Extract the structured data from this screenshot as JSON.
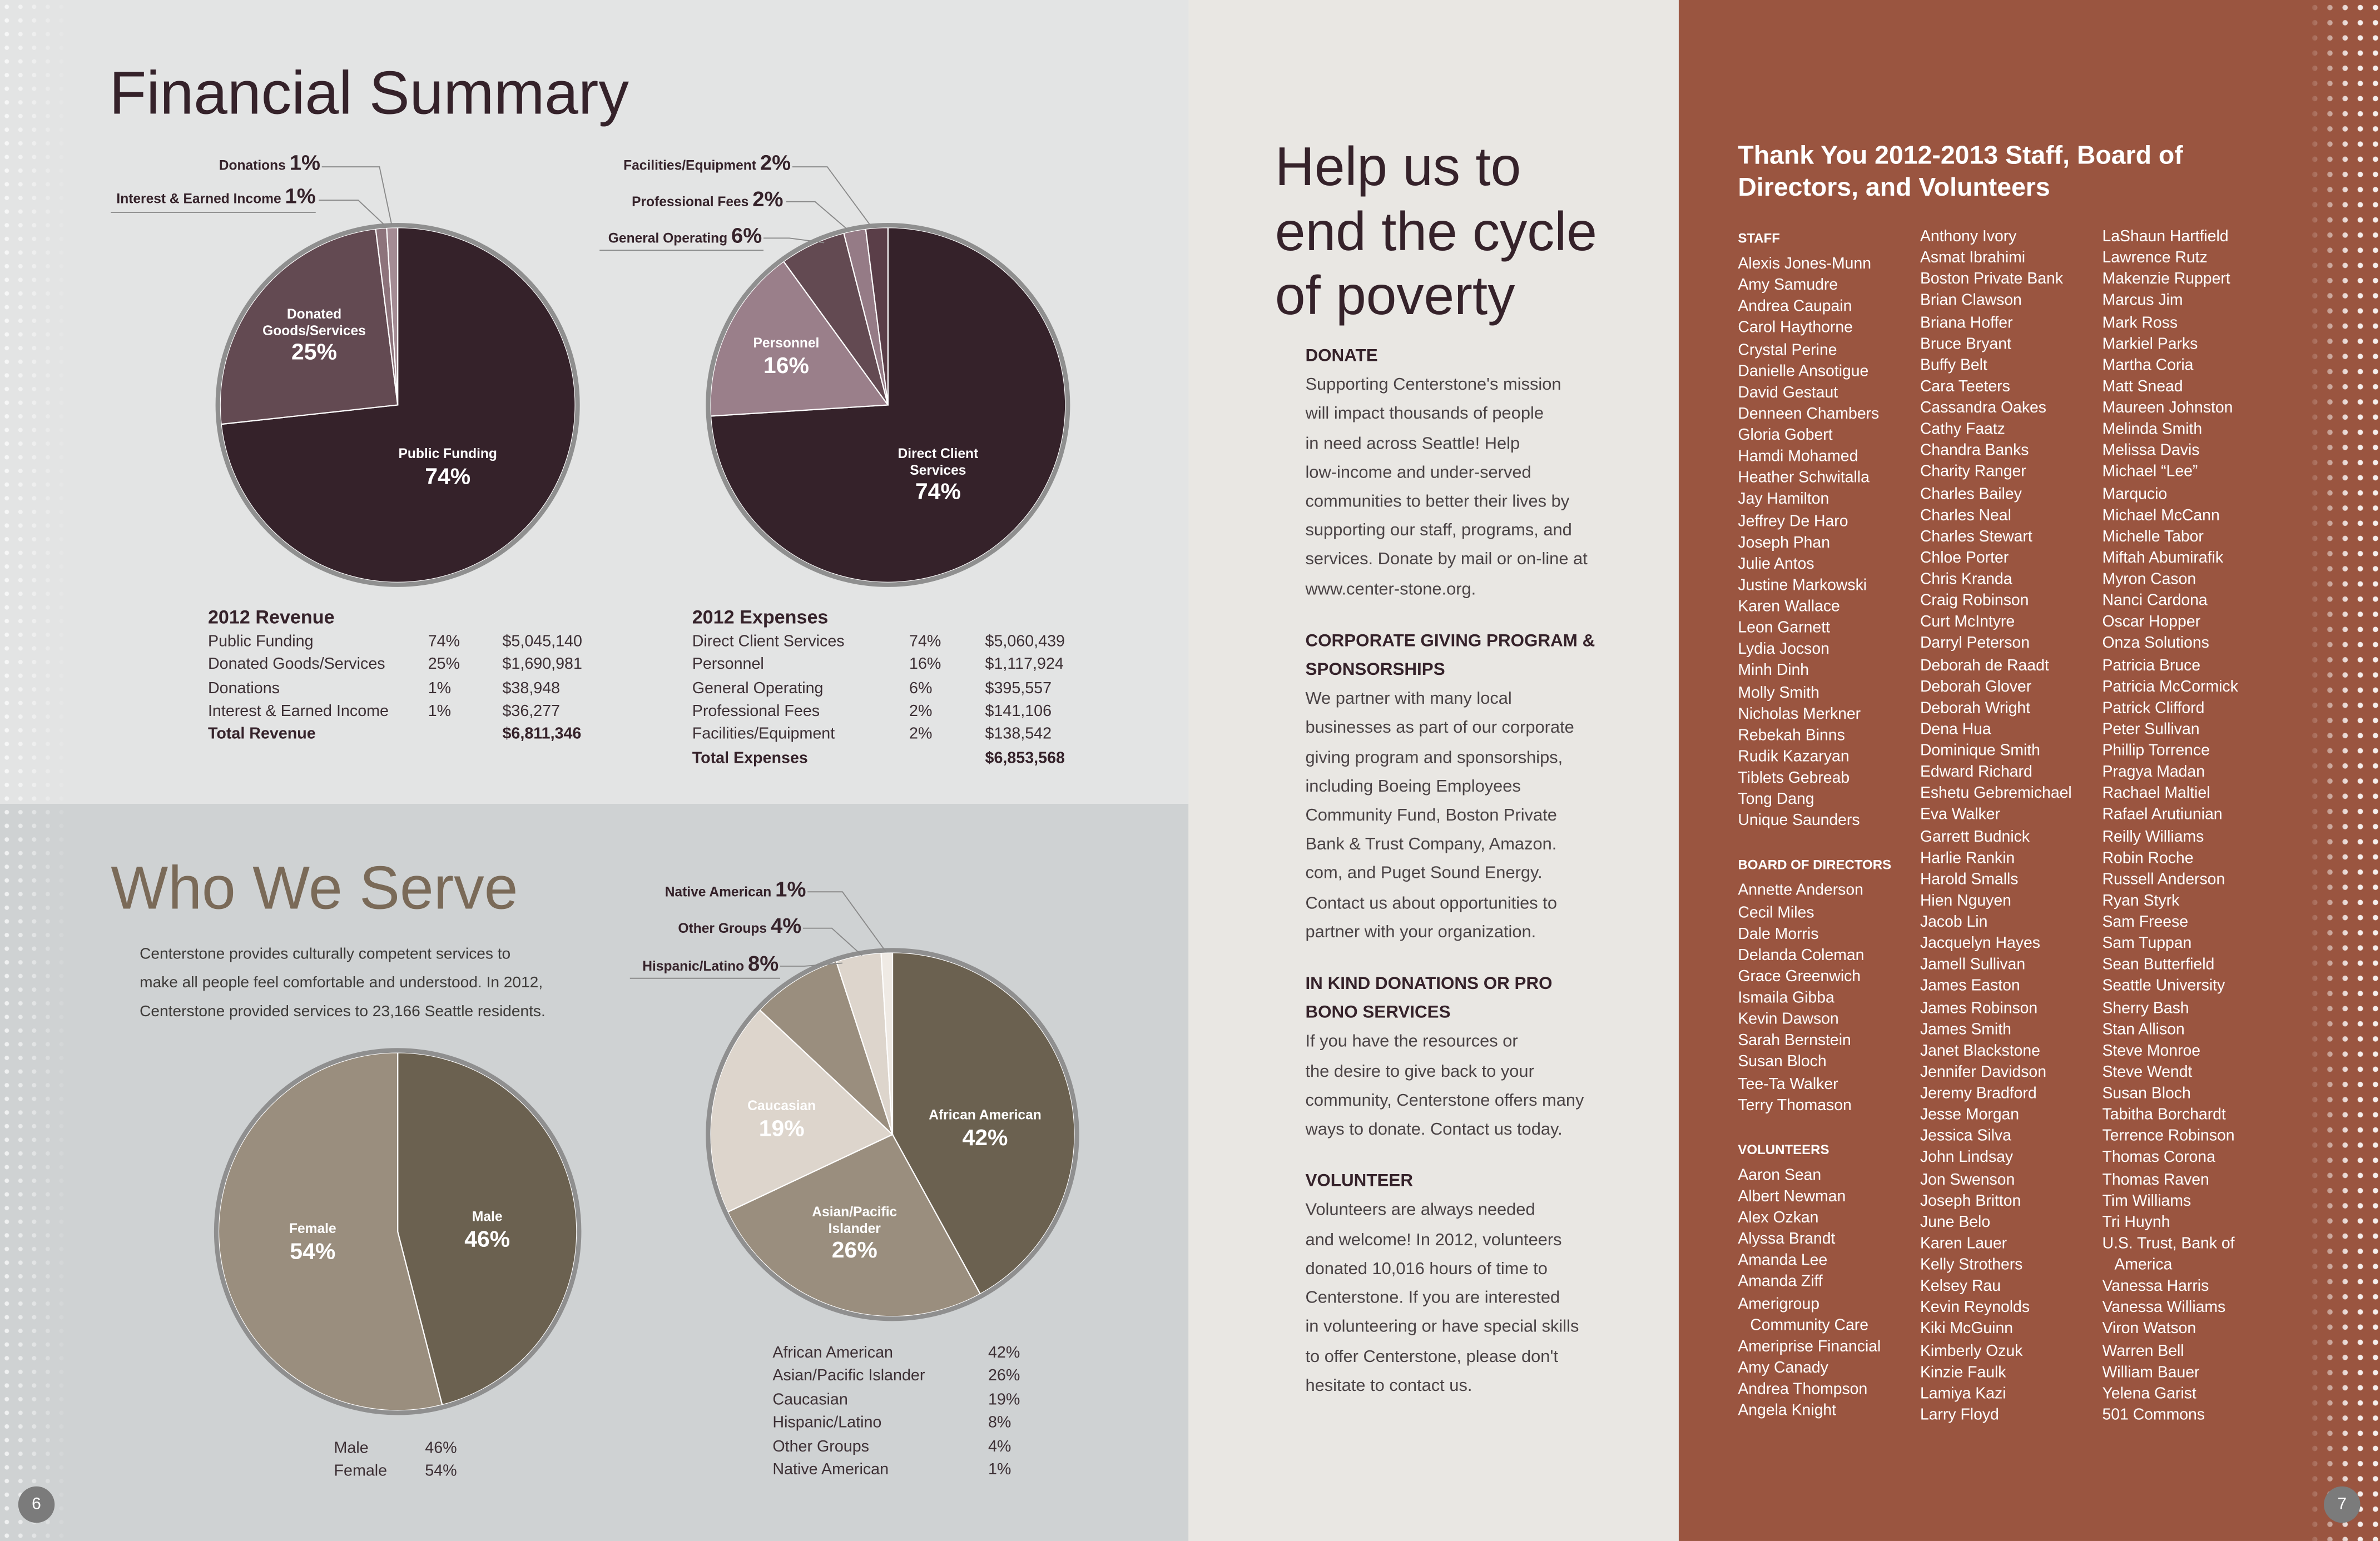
{
  "financial": {
    "title": "Financial Summary",
    "revenue": {
      "heading": "2012 Revenue",
      "rows": [
        [
          "Public Funding",
          "74%",
          "$5,045,140"
        ],
        [
          "Donated Goods/Services",
          "25%",
          "$1,690,981"
        ],
        [
          "Donations",
          "1%",
          "$38,948"
        ],
        [
          "Interest & Earned Income",
          "1%",
          "$36,277"
        ]
      ],
      "total_label": "Total Revenue",
      "total": "$6,811,346"
    },
    "expenses": {
      "heading": "2012 Expenses",
      "rows": [
        [
          "Direct Client Services",
          "74%",
          "$5,060,439"
        ],
        [
          "Personnel",
          "16%",
          "$1,117,924"
        ],
        [
          "General Operating",
          "6%",
          "$395,557"
        ],
        [
          "Professional Fees",
          "2%",
          "$141,106"
        ],
        [
          "Facilities/Equipment",
          "2%",
          "$138,542"
        ]
      ],
      "total_label": "Total Expenses",
      "total": "$6,853,568"
    }
  },
  "serve": {
    "title": "Who We Serve",
    "intro": [
      "Centerstone provides culturally competent services to",
      "make all people feel comfortable and understood. In 2012,",
      "Centerstone provided services to 23,166 Seattle residents."
    ],
    "gender_rows": [
      [
        "Male",
        "46%"
      ],
      [
        "Female",
        "54%"
      ]
    ],
    "ethnic_rows": [
      [
        "African American",
        "42%"
      ],
      [
        "Asian/Pacific Islander",
        "26%"
      ],
      [
        "Caucasian",
        "19%"
      ],
      [
        "Hispanic/Latino",
        "8%"
      ],
      [
        "Other Groups",
        "4%"
      ],
      [
        "Native American",
        "1%"
      ]
    ]
  },
  "chart_data": [
    {
      "type": "pie",
      "categories": [
        "Public Funding",
        "Donated Goods/Services",
        "Donations",
        "Interest & Earned Income"
      ],
      "values": [
        74,
        25,
        1,
        1
      ],
      "colors": [
        "#35222a",
        "#634a52",
        "#8d737b",
        "#a48c94"
      ],
      "inside_labels": [
        [
          "Public Funding",
          "74%"
        ],
        [
          "Donated Goods/Services",
          "25%"
        ]
      ],
      "outside_labels": [
        [
          "Donations",
          "1%"
        ],
        [
          "Interest & Earned Income",
          "1%"
        ]
      ]
    },
    {
      "type": "pie",
      "categories": [
        "Direct Client Services",
        "Personnel",
        "General Operating",
        "Professional Fees",
        "Facilities/Equipment"
      ],
      "values": [
        74,
        16,
        6,
        2,
        2
      ],
      "colors": [
        "#35222a",
        "#9a7f8a",
        "#634a52",
        "#957b86",
        "#5a3e48"
      ],
      "inside_labels": [
        [
          "Direct Client Services",
          "74%"
        ],
        [
          "Personnel",
          "16%"
        ]
      ],
      "outside_labels": [
        [
          "Facilities/Equipment",
          "2%"
        ],
        [
          "Professional Fees",
          "2%"
        ],
        [
          "General Operating",
          "6%"
        ]
      ]
    },
    {
      "type": "pie",
      "categories": [
        "Male",
        "Female"
      ],
      "values": [
        46,
        54
      ],
      "colors": [
        "#6b6150",
        "#9a8e7e"
      ],
      "inside_labels": [
        [
          "Male",
          "46%"
        ],
        [
          "Female",
          "54%"
        ]
      ]
    },
    {
      "type": "pie",
      "categories": [
        "African American",
        "Asian/Pacific Islander",
        "Caucasian",
        "Hispanic/Latino",
        "Other Groups",
        "Native American"
      ],
      "values": [
        42,
        26,
        19,
        8,
        4,
        1
      ],
      "colors": [
        "#6b6150",
        "#9a8e7e",
        "#ddd5cc",
        "#9a8e7e",
        "#ddd5cc",
        "#efeae4"
      ],
      "inside_labels": [
        [
          "African American",
          "42%"
        ],
        [
          "Asian/Pacific Islander",
          "26%"
        ],
        [
          "Caucasian",
          "19%"
        ]
      ],
      "outside_labels": [
        [
          "Native American",
          "1%"
        ],
        [
          "Other Groups",
          "4%"
        ],
        [
          "Hispanic/Latino",
          "8%"
        ]
      ]
    }
  ],
  "help": {
    "title": [
      "Help us to",
      "end the cycle",
      "of poverty"
    ],
    "sections": [
      {
        "heading": [
          "DONATE"
        ],
        "body": [
          "Supporting Centerstone's mission",
          "will impact thousands of people",
          "in need across Seattle! Help",
          "low-income and under-served",
          "communities to better their lives by",
          "supporting our staff, programs, and",
          "services. Donate by mail or on-line at",
          "www.center-stone.org."
        ]
      },
      {
        "heading": [
          "CORPORATE GIVING PROGRAM &",
          "SPONSORSHIPS"
        ],
        "body": [
          "We partner with many local",
          "businesses as part of our corporate",
          "giving program and sponsorships,",
          "including Boeing Employees",
          "Community Fund, Boston Private",
          "Bank & Trust Company, Amazon.",
          "com, and Puget Sound Energy.",
          "Contact us about opportunities to",
          "partner with your organization."
        ]
      },
      {
        "heading": [
          "IN KIND DONATIONS OR PRO",
          "BONO SERVICES"
        ],
        "body": [
          "If you have the resources or",
          "the desire to give back to your",
          "community, Centerstone offers many",
          "ways to donate. Contact us today."
        ]
      },
      {
        "heading": [
          "VOLUNTEER"
        ],
        "body": [
          "Volunteers are always needed",
          "and welcome! In 2012, volunteers",
          "donated 10,016 hours of time to",
          "Centerstone.  If you are interested",
          "in volunteering or have special skills",
          "to offer Centerstone, please don't",
          "hesitate to contact us."
        ]
      }
    ]
  },
  "thanks": {
    "title": [
      "Thank You 2012-2013 Staff, Board of",
      "Directors, and Volunteers"
    ],
    "col1": [
      {
        "h": "STAFF"
      },
      "Alexis Jones-Munn",
      "Amy Samudre",
      "Andrea Caupain",
      "Carol Haythorne",
      "Crystal Perine",
      "Danielle Ansotigue",
      "David Gestaut",
      "Denneen Chambers",
      "Gloria Gobert",
      "Hamdi Mohamed",
      "Heather Schwitalla",
      "Jay Hamilton",
      "Jeffrey De Haro",
      "Joseph Phan",
      "Julie Antos",
      "Justine Markowski",
      "Karen Wallace",
      "Leon Garnett",
      "Lydia Jocson",
      "Minh Dinh",
      "Molly Smith",
      "Nicholas Merkner",
      "Rebekah Binns",
      "Rudik Kazaryan",
      "Tiblets Gebreab",
      "Tong Dang",
      "Unique Saunders",
      {
        "gap": 1
      },
      {
        "h": "BOARD OF DIRECTORS"
      },
      "Annette Anderson",
      "Cecil Miles",
      "Dale Morris",
      "Delanda Coleman",
      "Grace Greenwich",
      "Ismaila Gibba",
      "Kevin Dawson",
      "Sarah Bernstein",
      "Susan Bloch",
      "Tee-Ta Walker",
      "Terry Thomason",
      {
        "gap": 1
      },
      {
        "h": "VOLUNTEERS"
      },
      "Aaron Sean",
      "Albert Newman",
      "Alex Ozkan",
      "Alyssa Brandt",
      "Amanda Lee",
      "Amanda Ziff",
      "Amerigroup",
      {
        "i": "Community Care"
      },
      "Ameriprise Financial",
      "Amy Canady",
      "Andrea Thompson",
      "Angela Knight"
    ],
    "col2": [
      "Anthony Ivory",
      "Asmat Ibrahimi",
      "Boston Private Bank",
      "Brian Clawson",
      "Briana Hoffer",
      "Bruce Bryant",
      "Buffy Belt",
      "Cara Teeters",
      "Cassandra Oakes",
      "Cathy Faatz",
      "Chandra Banks",
      "Charity Ranger",
      "Charles Bailey",
      "Charles Neal",
      "Charles Stewart",
      "Chloe Porter",
      "Chris Kranda",
      "Craig Robinson",
      "Curt McIntyre",
      "Darryl Peterson",
      "Deborah de Raadt",
      "Deborah Glover",
      "Deborah Wright",
      "Dena Hua",
      "Dominique Smith",
      "Edward Richard",
      "Eshetu Gebremichael",
      "Eva Walker",
      "Garrett Budnick",
      "Harlie Rankin",
      "Harold Smalls",
      "Hien Nguyen",
      "Jacob Lin",
      "Jacquelyn Hayes",
      "Jamell Sullivan",
      "James Easton",
      "James Robinson",
      "James Smith",
      "Janet Blackstone",
      "Jennifer Davidson",
      "Jeremy Bradford",
      "Jesse Morgan",
      "Jessica Silva",
      "John Lindsay",
      "Jon Swenson",
      "Joseph Britton",
      "June Belo",
      "Karen Lauer",
      "Kelly Strothers",
      "Kelsey Rau",
      "Kevin Reynolds",
      "Kiki McGuinn",
      "Kimberly Ozuk",
      "Kinzie Faulk",
      "Lamiya Kazi",
      "Larry Floyd"
    ],
    "col3": [
      "LaShaun Hartfield",
      "Lawrence Rutz",
      "Makenzie Ruppert",
      "Marcus Jim",
      "Mark Ross",
      "Markiel Parks",
      "Martha Coria",
      "Matt Snead",
      "Maureen Johnston",
      "Melinda Smith",
      "Melissa Davis",
      "Michael “Lee”",
      "Marqucio",
      "Michael McCann",
      "Michelle Tabor",
      "Miftah Abumirafik",
      "Myron Cason",
      "Nanci Cardona",
      "Oscar Hopper",
      "Onza Solutions",
      "Patricia Bruce",
      "Patricia McCormick",
      "Patrick Clifford",
      "Peter Sullivan",
      "Phillip Torrence",
      "Pragya Madan",
      "Rachael Maltiel",
      "Rafael Arutiunian",
      "Reilly Williams",
      "Robin Roche",
      "Russell Anderson",
      "Ryan Styrk",
      "Sam Freese",
      "Sam Tuppan",
      "Sean Butterfield",
      "Seattle University",
      "Sherry Bash",
      "Stan Allison",
      "Steve Monroe",
      "Steve Wendt",
      "Susan Bloch",
      "Tabitha Borchardt",
      "Terrence Robinson",
      "Thomas Corona",
      "Thomas Raven",
      "Tim Williams",
      "Tri Huynh",
      "U.S. Trust, Bank of",
      {
        "i": "America"
      },
      "Vanessa Harris",
      "Vanessa Williams",
      "Viron Watson",
      "Warren Bell",
      "William Bauer",
      "Yelena Garist",
      "501 Commons"
    ]
  },
  "pages": {
    "left": "6",
    "right": "7"
  }
}
